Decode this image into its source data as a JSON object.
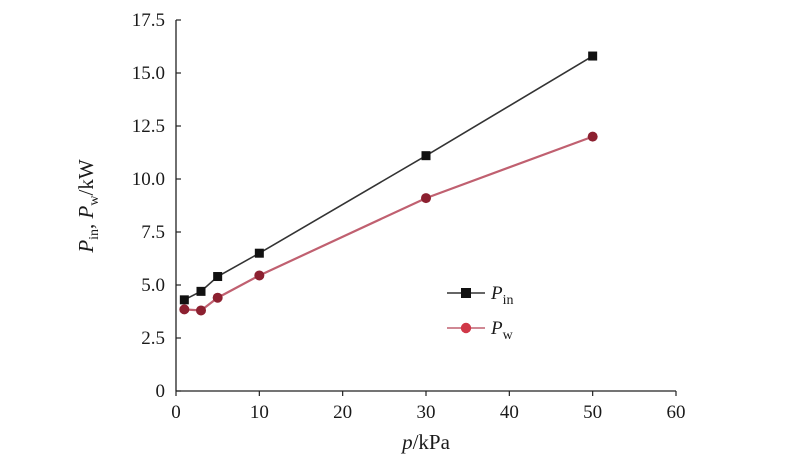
{
  "chart_data": {
    "type": "line",
    "x": [
      1,
      3,
      5,
      10,
      30,
      50
    ],
    "series": [
      {
        "name": "P_in",
        "label_main": "P",
        "label_sub": "in",
        "marker": "square",
        "color": "#111111",
        "line_color": "#333333",
        "values": [
          4.3,
          4.7,
          5.4,
          6.5,
          11.1,
          15.8
        ]
      },
      {
        "name": "P_w",
        "label_main": "P",
        "label_sub": "w",
        "marker": "circle",
        "color": "#8c2030",
        "line_color": "#c06070",
        "values": [
          3.85,
          3.8,
          4.4,
          5.45,
          9.1,
          12.0
        ]
      }
    ],
    "xlabel": {
      "main": "p",
      "unit": "/kPa"
    },
    "ylabel": {
      "p1": "P",
      "s1": "in",
      "sep": ", ",
      "p2": "P",
      "s2": "w",
      "unit": "/kW"
    },
    "xlim": [
      0,
      60
    ],
    "ylim": [
      0,
      17.5
    ],
    "xticks": [
      "0",
      "10",
      "20",
      "30",
      "40",
      "50",
      "60"
    ],
    "yticks": [
      "0",
      "2.5",
      "5.0",
      "7.5",
      "10.0",
      "12.5",
      "15.0",
      "17.5"
    ],
    "grid": false,
    "legend_position": "lower-right"
  }
}
